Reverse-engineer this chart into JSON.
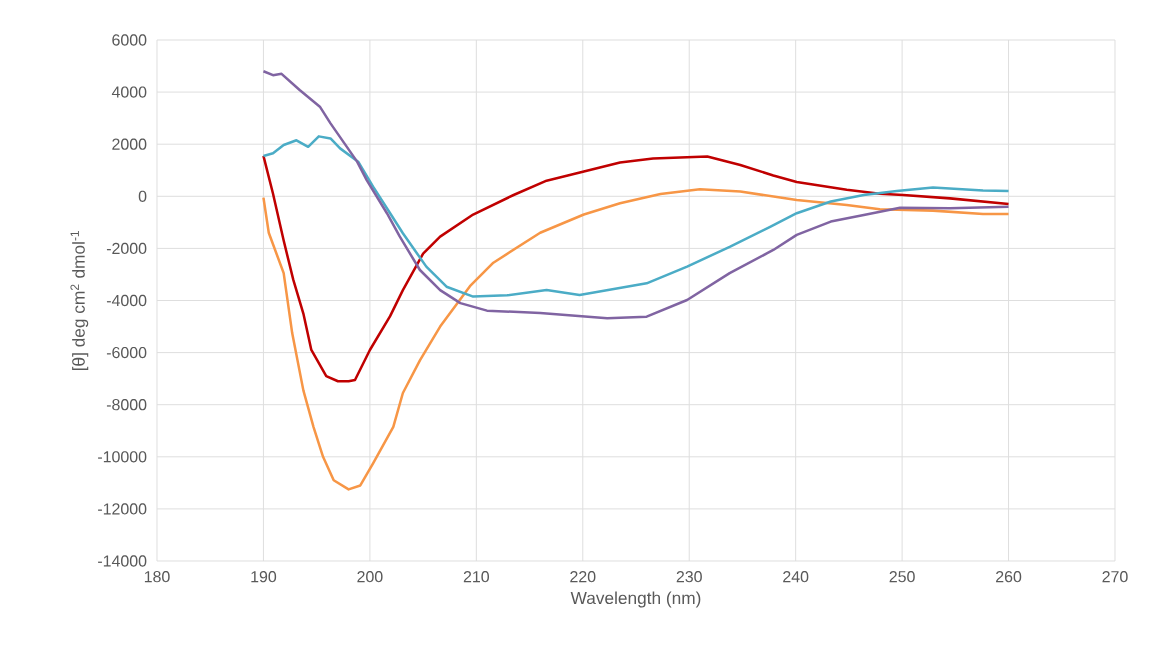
{
  "chart_data": {
    "type": "line",
    "xlabel": "Wavelength (nm)",
    "ylabel": "[θ] deg cm$^{2}$ dmol$^{-1}$",
    "xlim": [
      180,
      270
    ],
    "xticks": [
      180,
      190,
      200,
      210,
      220,
      230,
      240,
      250,
      260,
      270
    ],
    "ylim": [
      -14000,
      6000
    ],
    "yticks": [
      -14000,
      -12000,
      -10000,
      -8000,
      -6000,
      -4000,
      -2000,
      0,
      2000,
      4000,
      6000
    ],
    "grid": true,
    "marker": "none",
    "line_style": "solid",
    "series": [
      {
        "color": "#c00000",
        "x": [
          190,
          190.9,
          191.9,
          192.8,
          193.75,
          194.5,
          195.9,
          197,
          198,
          198.6,
          200,
          201.9,
          203.1,
          205,
          206.6,
          209.7,
          213.5,
          216.6,
          220.1,
          223.5,
          226.6,
          231.7,
          234.8,
          237.9,
          240.1,
          244.8,
          247.9,
          250.1,
          254.5,
          260
        ],
        "values": [
          1550,
          100,
          -1700,
          -3200,
          -4500,
          -5900,
          -6900,
          -7100,
          -7100,
          -7050,
          -5900,
          -4600,
          -3600,
          -2200,
          -1550,
          -700,
          50,
          600,
          950,
          1300,
          1450,
          1530,
          1200,
          800,
          550,
          250,
          100,
          50,
          -80,
          -300
        ]
      },
      {
        "color": "#f79646",
        "x": [
          190,
          190.5,
          191.9,
          192.7,
          193.75,
          194.7,
          195.6,
          196.6,
          198,
          199.1,
          200.3,
          202.2,
          203.1,
          204.7,
          206.6,
          209.4,
          211.6,
          216,
          220.1,
          223.5,
          227.3,
          231,
          234.8,
          240.1,
          244.8,
          247.9,
          252.9,
          257.6,
          260
        ],
        "values": [
          -50,
          -1400,
          -2950,
          -5250,
          -7450,
          -8850,
          -10000,
          -10900,
          -11250,
          -11100,
          -10250,
          -8850,
          -7550,
          -6300,
          -5000,
          -3450,
          -2550,
          -1400,
          -700,
          -270,
          90,
          270,
          180,
          -140,
          -330,
          -500,
          -550,
          -680,
          -680
        ]
      },
      {
        "color": "#4bacc6",
        "x": [
          190,
          190.9,
          191.9,
          193.1,
          194.2,
          195.2,
          196.3,
          197.2,
          198.9,
          200.3,
          201.9,
          203.1,
          205.3,
          207.2,
          209.7,
          212.9,
          216.6,
          219.7,
          226,
          229.8,
          233.8,
          237.6,
          240.1,
          243.3,
          246.4,
          249.5,
          252.9,
          257.6,
          260
        ],
        "values": [
          1550,
          1650,
          1970,
          2150,
          1900,
          2300,
          2220,
          1840,
          1330,
          370,
          -650,
          -1420,
          -2700,
          -3470,
          -3850,
          -3800,
          -3600,
          -3790,
          -3340,
          -2700,
          -1940,
          -1170,
          -650,
          -200,
          50,
          200,
          340,
          220,
          200
        ]
      },
      {
        "color": "#8064a2",
        "x": [
          190,
          190.9,
          191.7,
          193.4,
          195.3,
          196.3,
          198.8,
          199.7,
          201.6,
          202.8,
          204.7,
          206.6,
          208.5,
          211,
          216,
          222.3,
          226,
          229.8,
          233.8,
          237.9,
          240.1,
          243.3,
          246.4,
          249.8,
          254.5,
          260
        ],
        "values": [
          4800,
          4650,
          4700,
          4080,
          3440,
          2800,
          1330,
          620,
          -650,
          -1540,
          -2830,
          -3600,
          -4100,
          -4390,
          -4480,
          -4680,
          -4620,
          -3980,
          -2950,
          -2060,
          -1480,
          -970,
          -720,
          -440,
          -460,
          -400
        ]
      }
    ]
  }
}
